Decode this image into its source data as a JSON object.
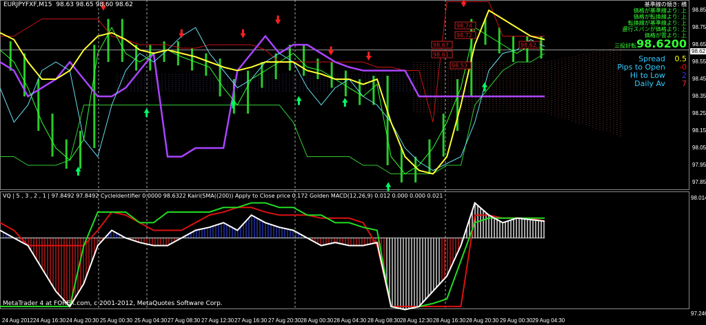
{
  "header": {
    "symbol": "EURJPYFXF,M15",
    "ohlc": "98.63 98.65 98.60 98.62"
  },
  "indicator_header": "VQ | 5 , 3 , 2 , 1 | 97.8492 97.8492  CycleIdentifier 0.0000 98.6322  Kairi(SMA((200)) Apply to Close price 0.172  Golden MACD(12,26,9) 0.012 0.000 0.000 0.021",
  "copyright": "MetaTrader 4 at FOREX.com, c 2001-2012, MetaQuotes Software Corp.",
  "info_panel": {
    "lines": [
      "基準線の傾き: 横",
      "価格が基準線より: 上",
      "価格が転換線より: 上",
      "転換線が基準線より: 上",
      "遅行スパンが価格より: 上",
      "価格が雲より: 上"
    ],
    "sanyaku": "三役好転",
    "price": "98.6200",
    "rows": [
      {
        "label": "Spread",
        "value": "0.5",
        "color": "#ffff00"
      },
      {
        "label": "Pips to Open",
        "value": "-0",
        "color": "#ff0000"
      },
      {
        "label": "Hi to Low",
        "value": "2",
        "color": "#3333ff"
      },
      {
        "label": "Daily Av",
        "value": "7",
        "color": "#ff2020"
      }
    ]
  },
  "price_axis": [
    "98.85",
    "98.75",
    "98.65",
    "98.55",
    "98.45",
    "98.35",
    "98.25",
    "98.15",
    "98.05",
    "97.95",
    "97.85"
  ],
  "current_price": "98.62",
  "indicator_axis": {
    "max": "98.0146",
    "min": "97.2466"
  },
  "time_axis": [
    "24 Aug 2012",
    "24 Aug 16:30",
    "24 Aug 20:30",
    "25 Aug 00:30",
    "25 Aug 04:30",
    "27 Aug 08:30",
    "27 Aug 12:30",
    "27 Aug 16:30",
    "27 Aug 20:30",
    "28 Aug 00:30",
    "28 Aug 04:30",
    "28 Aug 08:30",
    "28 Aug 12:30",
    "28 Aug 16:30",
    "28 Aug 20:30",
    "29 Aug 00:30",
    "29 Aug 04:30"
  ],
  "price_labels": [
    "98.74",
    "98.72",
    "98.67",
    "98.61",
    "98.53",
    "98.62"
  ],
  "colors": {
    "close": "#33ff33",
    "yellow": "#ffff33",
    "cyan": "#66ddee",
    "purple": "#aa44ff",
    "red_band": "#cc1111",
    "green_band": "#33cc33",
    "bull": "#00ff66",
    "bear": "#ff2020"
  },
  "series": {
    "close": [
      98.62,
      98.55,
      98.4,
      98.2,
      98.05,
      97.98,
      98.1,
      98.6,
      98.75,
      98.6,
      98.55,
      98.6,
      98.62,
      98.58,
      98.55,
      98.52,
      98.4,
      98.3,
      98.45,
      98.5,
      98.55,
      98.6,
      98.52,
      98.5,
      98.45,
      98.4,
      98.35,
      98.42,
      98.0,
      97.9,
      97.95,
      98.05,
      98.2,
      98.4,
      98.75,
      98.7,
      98.65,
      98.6,
      98.65,
      98.62
    ],
    "yellow": [
      98.72,
      98.68,
      98.55,
      98.45,
      98.45,
      98.5,
      98.62,
      98.7,
      98.72,
      98.68,
      98.62,
      98.6,
      98.62,
      98.6,
      98.58,
      98.55,
      98.52,
      98.5,
      98.52,
      98.55,
      98.55,
      98.55,
      98.5,
      98.48,
      98.45,
      98.45,
      98.42,
      98.45,
      98.2,
      98.0,
      97.92,
      97.9,
      98.0,
      98.3,
      98.65,
      98.85,
      98.8,
      98.75,
      98.7,
      98.68
    ],
    "cyan": [
      98.4,
      98.2,
      98.3,
      98.5,
      98.55,
      98.5,
      98.1,
      98.0,
      98.3,
      98.5,
      98.6,
      98.55,
      98.62,
      98.7,
      98.75,
      98.6,
      98.5,
      98.4,
      98.45,
      98.55,
      98.6,
      98.55,
      98.4,
      98.3,
      98.4,
      98.45,
      98.35,
      98.3,
      98.2,
      98.05,
      97.97,
      97.92,
      97.96,
      98.0,
      98.2,
      98.5,
      98.6,
      98.62,
      98.68,
      98.64
    ],
    "purple": [
      98.55,
      98.5,
      98.35,
      98.4,
      98.45,
      98.55,
      98.45,
      98.35,
      98.35,
      98.4,
      98.5,
      98.6,
      98.0,
      98.0,
      98.05,
      98.05,
      98.05,
      98.5,
      98.6,
      98.7,
      98.6,
      98.65,
      98.65,
      98.6,
      98.55,
      98.52,
      98.5,
      98.5,
      98.5,
      98.5,
      98.35,
      98.35,
      98.35,
      98.35,
      98.35,
      98.35,
      98.35,
      98.35,
      98.35,
      98.35
    ],
    "red_band": [
      98.7,
      98.7,
      98.75,
      98.8,
      98.8,
      98.8,
      98.8,
      98.8,
      98.7,
      98.68,
      98.65,
      98.65,
      98.65,
      98.63,
      98.63,
      98.65,
      98.65,
      98.65,
      98.65,
      98.62,
      98.55,
      98.55,
      98.55,
      98.55,
      98.55,
      98.55,
      98.55,
      98.52,
      98.52,
      98.5,
      98.5,
      98.2,
      98.9,
      98.9,
      98.9,
      98.9,
      98.7,
      98.7,
      98.7,
      98.7
    ],
    "green_band": [
      98.0,
      98.0,
      97.95,
      97.95,
      97.95,
      97.98,
      98.3,
      98.3,
      98.3,
      98.3,
      98.3,
      98.3,
      98.3,
      98.3,
      98.3,
      98.3,
      98.3,
      98.3,
      98.3,
      98.3,
      98.3,
      98.2,
      98.0,
      98.0,
      98.0,
      98.0,
      97.95,
      97.95,
      97.9,
      97.9,
      97.9,
      97.9,
      97.95,
      97.95,
      98.3,
      98.4,
      98.5,
      98.55,
      98.55,
      98.6
    ]
  },
  "indicator_series": {
    "white": [
      97.8,
      97.75,
      97.7,
      97.55,
      97.4,
      97.3,
      97.45,
      97.7,
      97.8,
      97.75,
      97.72,
      97.7,
      97.7,
      97.75,
      97.8,
      97.82,
      97.85,
      97.8,
      97.9,
      97.85,
      97.82,
      97.8,
      97.75,
      97.7,
      97.72,
      97.7,
      97.7,
      97.72,
      97.3,
      97.28,
      97.3,
      97.4,
      97.5,
      97.7,
      97.98,
      97.9,
      97.85,
      97.88,
      97.87,
      97.86
    ],
    "red": [
      97.85,
      97.8,
      97.7,
      97.7,
      97.7,
      97.7,
      97.7,
      97.8,
      97.92,
      97.9,
      97.85,
      97.8,
      97.8,
      97.8,
      97.85,
      97.9,
      97.92,
      97.95,
      97.95,
      97.92,
      97.9,
      97.9,
      97.9,
      97.88,
      97.88,
      97.88,
      97.85,
      97.7,
      97.3,
      97.3,
      97.3,
      97.3,
      97.3,
      97.3,
      97.9,
      97.9,
      97.88,
      97.88,
      97.88,
      97.86
    ],
    "green": [
      97.3,
      97.3,
      97.3,
      97.3,
      97.3,
      97.3,
      97.7,
      97.92,
      97.92,
      97.92,
      97.85,
      97.85,
      97.92,
      97.92,
      97.92,
      97.92,
      97.95,
      97.95,
      97.98,
      97.98,
      97.95,
      97.95,
      97.9,
      97.9,
      97.85,
      97.85,
      97.82,
      97.8,
      97.3,
      97.28,
      97.3,
      97.32,
      97.35,
      97.6,
      97.85,
      97.88,
      97.88,
      97.88,
      97.88,
      97.88
    ]
  },
  "signals": [
    {
      "type": "sell",
      "bar": 7.4,
      "price": 98.86
    },
    {
      "type": "sell",
      "bar": 13,
      "price": 98.7
    },
    {
      "type": "sell",
      "bar": 17.4,
      "price": 98.7
    },
    {
      "type": "sell",
      "bar": 19.9,
      "price": 98.78
    },
    {
      "type": "sell",
      "bar": 23.7,
      "price": 98.6
    },
    {
      "type": "sell",
      "bar": 26.4,
      "price": 98.57
    },
    {
      "type": "sell",
      "bar": 33.2,
      "price": 98.88
    },
    {
      "type": "buy",
      "bar": 5.6,
      "price": 97.93
    },
    {
      "type": "buy",
      "bar": 10.5,
      "price": 98.27
    },
    {
      "type": "buy",
      "bar": 16.7,
      "price": 98.32
    },
    {
      "type": "buy",
      "bar": 21.4,
      "price": 98.34
    },
    {
      "type": "buy",
      "bar": 24.7,
      "price": 98.33
    },
    {
      "type": "buy",
      "bar": 27.8,
      "price": 97.84
    },
    {
      "type": "buy",
      "bar": 34.7,
      "price": 98.42
    }
  ]
}
